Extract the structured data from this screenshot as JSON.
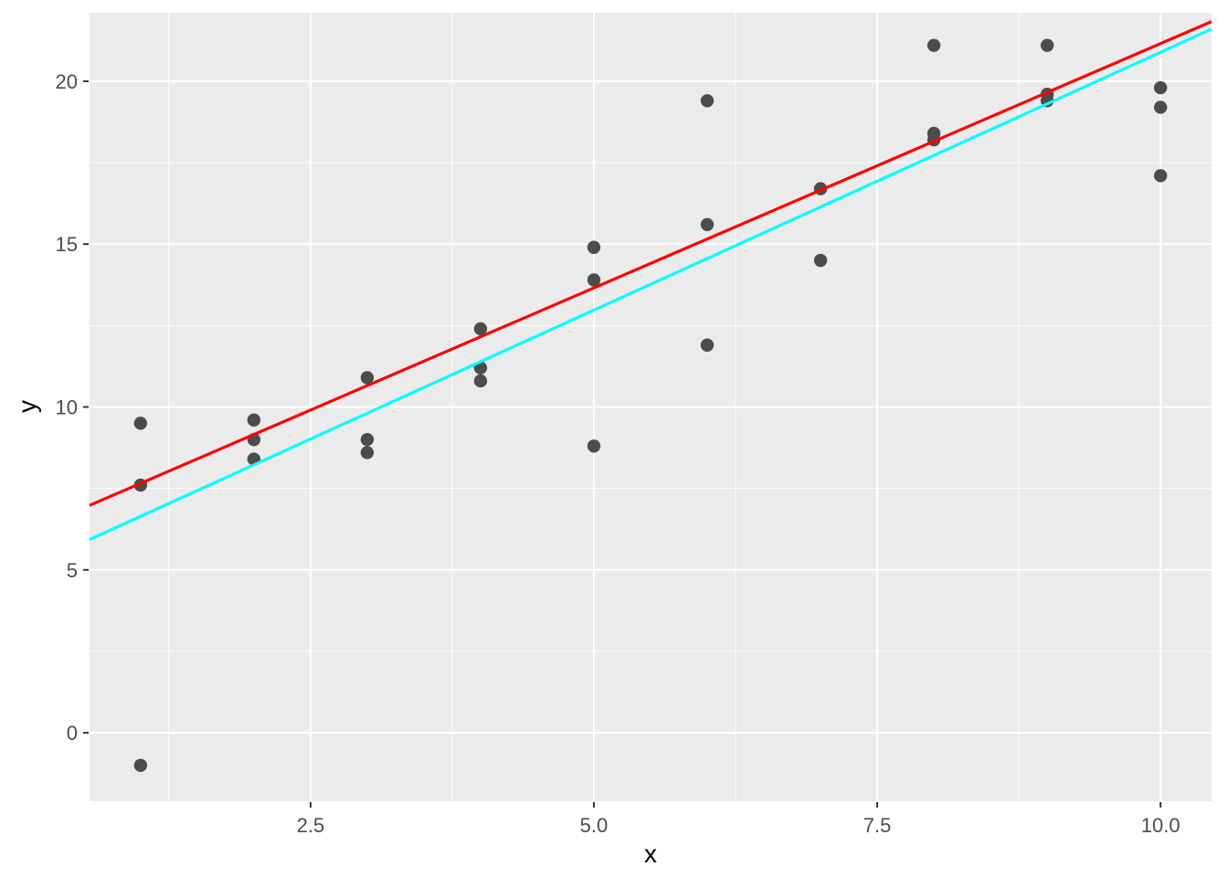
{
  "chart_data": {
    "type": "scatter",
    "title": "",
    "xlabel": "x",
    "ylabel": "y",
    "xlim": [
      0.55,
      10.45
    ],
    "ylim": [
      -2.1,
      22.1
    ],
    "grid": true,
    "legend": false,
    "x_ticks": [
      2.5,
      5.0,
      7.5,
      10.0
    ],
    "x_tick_labels": [
      "2.5",
      "5.0",
      "7.5",
      "10.0"
    ],
    "y_ticks": [
      0,
      5,
      10,
      15,
      20
    ],
    "y_tick_labels": [
      "0",
      "5",
      "10",
      "15",
      "20"
    ],
    "x_minor_gridlines": [
      1.25,
      3.75,
      6.25,
      8.75
    ],
    "y_minor_gridlines": [
      2.5,
      7.5,
      12.5,
      17.5
    ],
    "points": [
      [
        1,
        9.5
      ],
      [
        1,
        7.6
      ],
      [
        1,
        -1.0
      ],
      [
        2,
        9.6
      ],
      [
        2,
        9.0
      ],
      [
        2,
        8.4
      ],
      [
        3,
        10.9
      ],
      [
        3,
        9.0
      ],
      [
        3,
        8.6
      ],
      [
        4,
        12.4
      ],
      [
        4,
        11.2
      ],
      [
        4,
        10.8
      ],
      [
        5,
        14.9
      ],
      [
        5,
        13.9
      ],
      [
        5,
        8.8
      ],
      [
        6,
        19.4
      ],
      [
        6,
        15.6
      ],
      [
        6,
        11.9
      ],
      [
        7,
        16.7
      ],
      [
        7,
        14.5
      ],
      [
        8,
        21.1
      ],
      [
        8,
        18.4
      ],
      [
        8,
        18.2
      ],
      [
        9,
        21.1
      ],
      [
        9,
        19.6
      ],
      [
        9,
        19.4
      ],
      [
        10,
        19.8
      ],
      [
        10,
        19.2
      ],
      [
        10,
        17.1
      ]
    ],
    "lines": [
      {
        "name": "red-fit-line",
        "color": "#FF0000",
        "x1": 0.55,
        "y1": 6.98,
        "x2": 10.45,
        "y2": 21.83
      },
      {
        "name": "cyan-fit-line",
        "color": "#00FFFF",
        "x1": 0.55,
        "y1": 5.93,
        "x2": 10.45,
        "y2": 21.6
      }
    ],
    "colors": {
      "point": "#4C4C4C",
      "panel_background": "#EBEBEB",
      "gridline": "#FFFFFF",
      "tick_mark": "#333333",
      "tick_label": "#4D4D4D",
      "axis_title": "#000000"
    }
  }
}
